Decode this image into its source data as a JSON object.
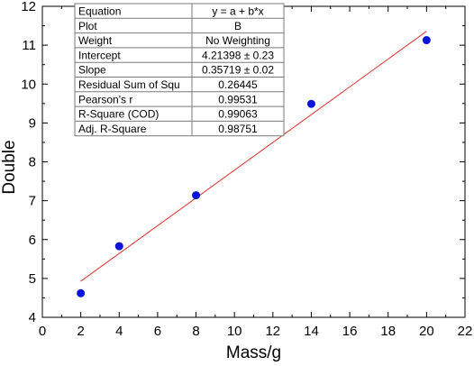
{
  "chart_data": {
    "type": "scatter",
    "title": "",
    "xlabel": "Mass/g",
    "ylabel": "Double",
    "xlim": [
      0,
      22
    ],
    "ylim": [
      4,
      12
    ],
    "x_ticks": [
      0,
      2,
      4,
      6,
      8,
      10,
      12,
      14,
      16,
      18,
      20,
      22
    ],
    "y_ticks": [
      4,
      5,
      6,
      7,
      8,
      9,
      10,
      11,
      12
    ],
    "grid": false,
    "series": [
      {
        "x": [
          2,
          4,
          8,
          14,
          20
        ],
        "y": [
          4.62,
          5.83,
          7.14,
          9.49,
          11.13
        ],
        "marker_color": "#0a14d8"
      }
    ],
    "fit_line": {
      "intercept": 4.21398,
      "slope": 0.35719,
      "x_range": [
        2,
        20
      ],
      "color": "#e0302a"
    },
    "stats_table": [
      [
        "Equation",
        "y = a + b*x"
      ],
      [
        "Plot",
        "B"
      ],
      [
        "Weight",
        "No Weighting"
      ],
      [
        "Intercept",
        "4.21398 ± 0.23"
      ],
      [
        "Slope",
        "0.35719 ± 0.02"
      ],
      [
        "Residual Sum of Squ",
        "0.26445"
      ],
      [
        "Pearson's r",
        "0.99531"
      ],
      [
        "R-Square (COD)",
        "0.99063"
      ],
      [
        "Adj. R-Square",
        "0.98751"
      ]
    ]
  }
}
